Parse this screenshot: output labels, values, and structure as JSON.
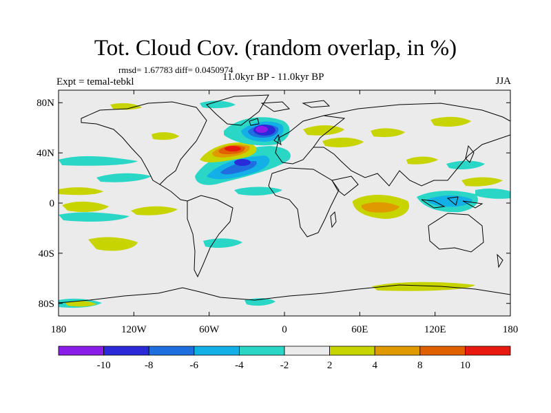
{
  "title": "Tot. Cloud Cov. (random overlap, in %)",
  "stats": "rmsd= 1.67783  diff= 0.0450974",
  "expt": "Expt = temal-tebkl",
  "period": "11.0kyr BP - 11.0kyr BP",
  "season": "JJA",
  "lat_ticks": [
    "80N",
    "40N",
    "0",
    "40S",
    "80S"
  ],
  "lon_ticks": [
    "180",
    "120W",
    "60W",
    "0",
    "60E",
    "120E",
    "180"
  ],
  "colorbar": {
    "labels": [
      "-10",
      "-8",
      "-6",
      "-4",
      "-2",
      "2",
      "4",
      "8",
      "10"
    ],
    "levels": [
      -10,
      -8,
      -6,
      -4,
      -2,
      2,
      4,
      8,
      10
    ],
    "colors": [
      "#8a1ee8",
      "#2a2ad9",
      "#1e6ee0",
      "#12b0e6",
      "#2ad6c6",
      "#ebebeb",
      "#c8d400",
      "#e09a00",
      "#e06000",
      "#e81a10"
    ]
  }
}
